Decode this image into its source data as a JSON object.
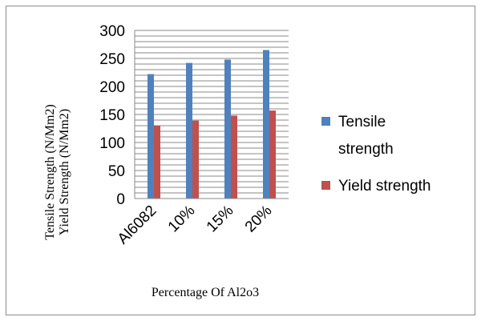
{
  "chart_data": {
    "type": "bar",
    "categories": [
      "Al6082",
      "10%",
      "15%",
      "20%"
    ],
    "series": [
      {
        "name": "Tensile strength",
        "values": [
          222,
          242,
          248,
          265
        ],
        "color": "#4F81BD"
      },
      {
        "name": "Yield strength",
        "values": [
          130,
          139,
          148,
          157
        ],
        "color": "#C0504D"
      }
    ],
    "xlabel": "Percentage Of Al2o3",
    "ylabel_lines": [
      "Tensile Strength (N/Mm2)",
      "Yield Strength (N/Mm2)"
    ],
    "ylim": [
      0,
      300
    ],
    "yticks": [
      0,
      50,
      100,
      150,
      200,
      250,
      300
    ],
    "grid": true,
    "legend": {
      "placement": "right",
      "entries": [
        {
          "lines": [
            "Tensile",
            "strength"
          ],
          "color": "#4F81BD"
        },
        {
          "lines": [
            "Yield strength"
          ],
          "color": "#C0504D"
        }
      ]
    }
  }
}
